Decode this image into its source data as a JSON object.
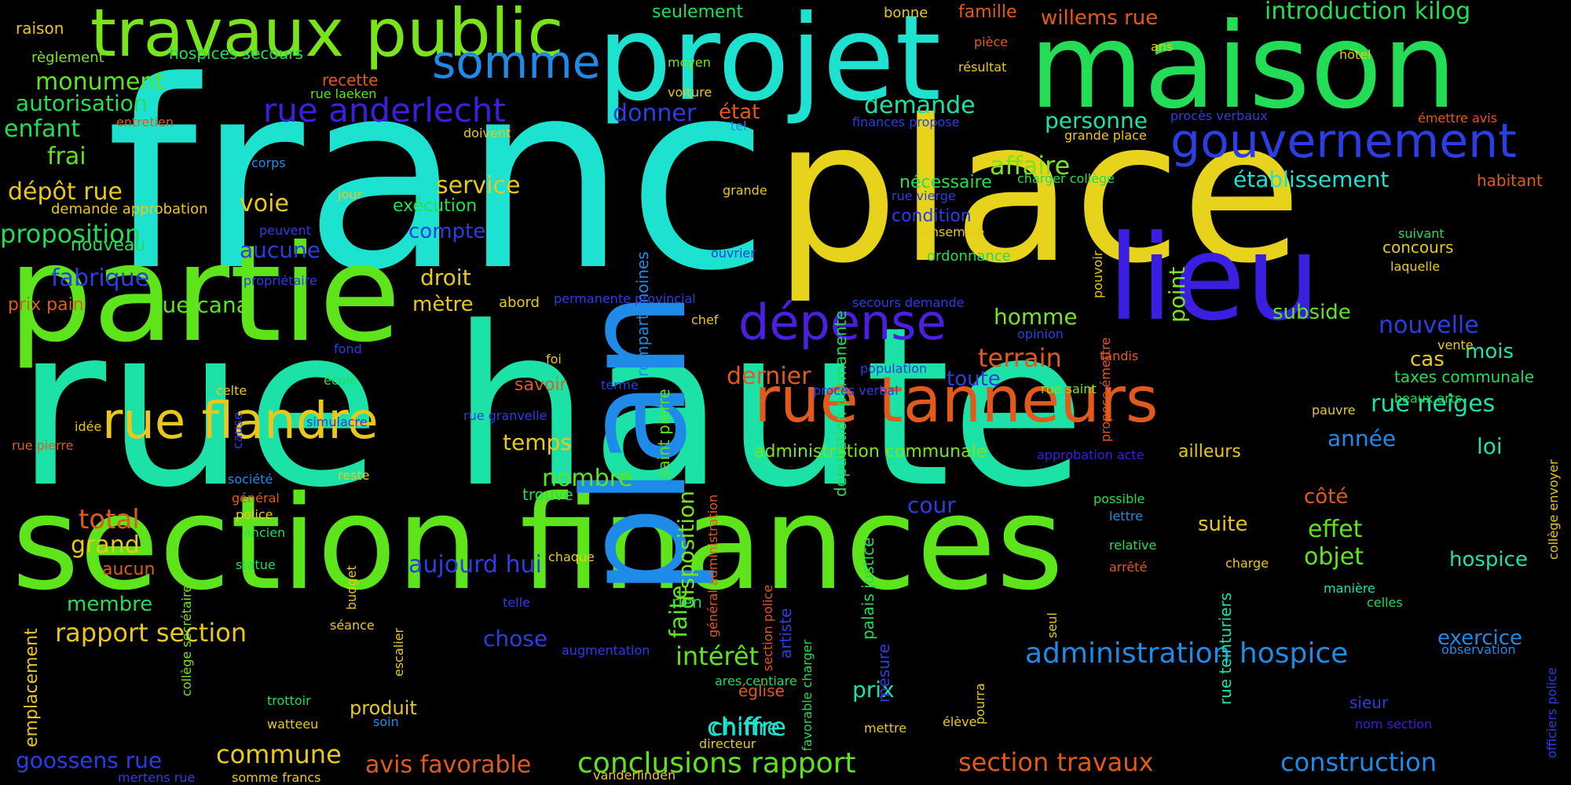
{
  "words": [
    "franc",
    "rue haute",
    "section finances",
    "place",
    "maison",
    "projet",
    "partie",
    "plan",
    "lieu",
    "travaux public",
    "rue tanneurs",
    "rue flandre",
    "dépense",
    "gouvernement",
    "somme",
    "rue anderlecht",
    "administration hospice",
    "conclusions rapport",
    "rapport section",
    "construction",
    "section travaux",
    "avis favorable",
    "commune",
    "goossens rue",
    "chiffre",
    "intérêt",
    "aujourd hui",
    "chose",
    "nombre",
    "temps",
    "introduction kilog",
    "willems rue",
    "seulement",
    "famille",
    "bonne",
    "monument",
    "autorisation",
    "enfant",
    "frai",
    "dépôt rue",
    "voie",
    "proposition",
    "fabrique",
    "rue canal",
    "prix pain",
    "aucune",
    "droit",
    "mètre",
    "service",
    "compte",
    "exécution",
    "donner",
    "état",
    "demande",
    "affaire",
    "établissement",
    "personne",
    "nécessaire",
    "condition",
    "concours",
    "habitant",
    "subside",
    "homme",
    "terrain",
    "toute",
    "nouvelle",
    "mois",
    "cas",
    "dernier",
    "savoir",
    "rue neiges",
    "taxes communale",
    "année",
    "loi",
    "côté",
    "effet",
    "objet",
    "suite",
    "hospice",
    "exercice",
    "total",
    "grand",
    "membre",
    "emplacement",
    "aucun",
    "cour",
    "prix",
    "église",
    "produit",
    "disposition",
    "faite",
    "saint pierre",
    "point",
    "administration communale",
    "ailleurs",
    "rue teinturiers",
    "palais justice",
    "députation permanente",
    "rempart moines",
    "raison",
    "règlement",
    "hospices secours",
    "recette",
    "rue laeken",
    "entretien",
    "corps",
    "demande approbation",
    "nouveau",
    "peuvent",
    "propriétaire",
    "jour",
    "grande",
    "ouvrier",
    "permanente provincial",
    "abord",
    "chef",
    "moyen",
    "voiture",
    "doivent",
    "tel",
    "finances propose",
    "procès verbaux",
    "grande place",
    "charger collège",
    "rue vierge",
    "ensemble",
    "ordonnance",
    "pouvoir",
    "propose émettre",
    "secours demande",
    "opinion",
    "tandis",
    "population",
    "procès verbal",
    "rue saint",
    "pauvre",
    "vente",
    "beaux arts",
    "collège envoyer",
    "officiers police",
    "observation",
    "nom section",
    "sieur",
    "manière",
    "celles",
    "charge",
    "arrêté",
    "relative",
    "lettre",
    "possible",
    "approbation acte",
    "seul",
    "pourra",
    "élève",
    "mettre",
    "ares centiare",
    "directeur",
    "vanderlinden",
    "section police",
    "artiste",
    "favorable charger",
    "mesure",
    "rue granvelle",
    "terme",
    "augmentation",
    "telle",
    "chaque",
    "général administration",
    "rien",
    "trouve",
    "fond",
    "école",
    "foi",
    "celte",
    "cause",
    "idée",
    "rue pierre",
    "simulacre",
    "société",
    "général",
    "police",
    "ancien",
    "statue",
    "reste",
    "budget",
    "collège secrétaire",
    "séance",
    "escalier",
    "trottoir",
    "watteeu",
    "soin",
    "somme francs",
    "mertens rue",
    "hôtel",
    "résultat",
    "pièce",
    "ans",
    "émettre avis",
    "suivant",
    "laquelle",
    "chiffre"
  ]
}
